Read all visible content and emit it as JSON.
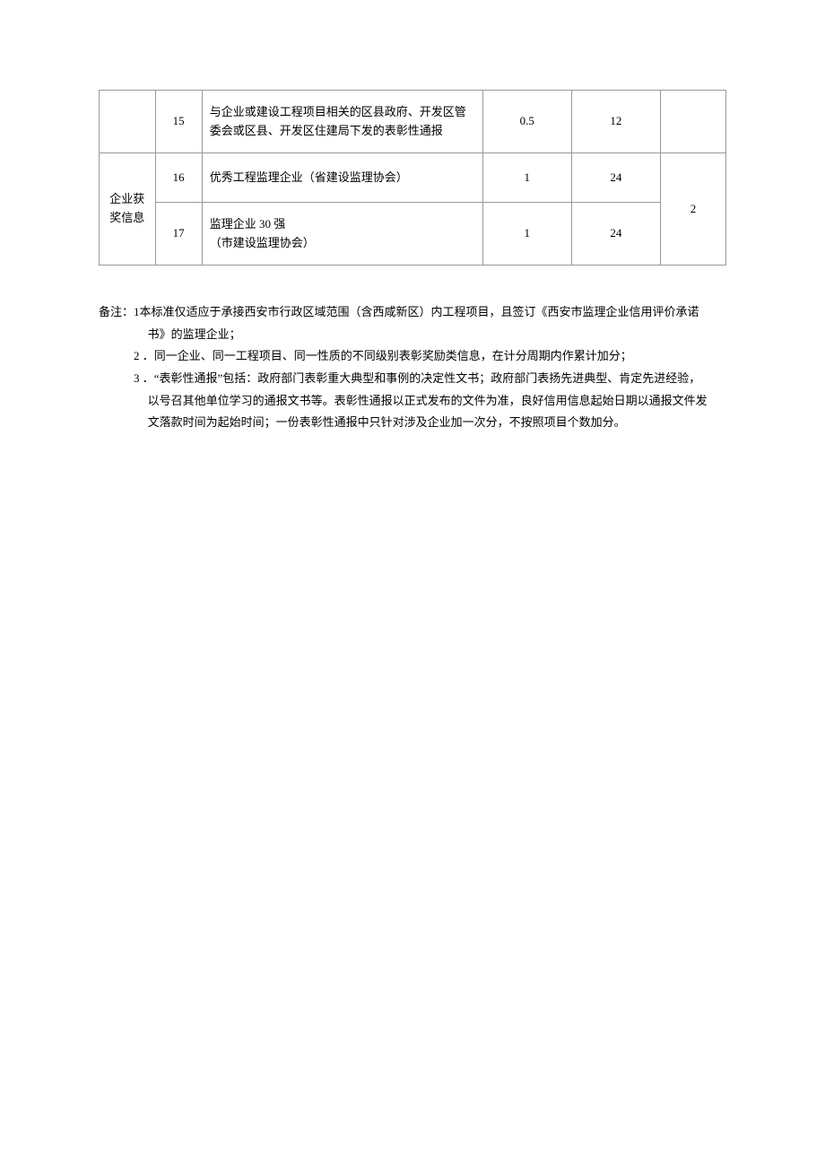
{
  "table": {
    "rows": [
      {
        "num": "15",
        "desc": "与企业或建设工程项目相关的区县政府、开发区管委会或区县、开发区住建局下发的表彰性通报",
        "val1": "0.5",
        "val2": "12"
      },
      {
        "category": "企业获奖信息",
        "num": "16",
        "desc": "优秀工程监理企业（省建设监理协会）",
        "val1": "1",
        "val2": "24",
        "val3": "2"
      },
      {
        "num": "17",
        "desc": "监理企业 30 强\n（市建设监理协会）",
        "val1": "1",
        "val2": "24"
      }
    ]
  },
  "notes": {
    "prefix": "备注：",
    "items": [
      {
        "num": "1",
        "text_line1": "本标准仅适应于承接西安市行政区域范围（含西咸新区）内工程项目，且签订《西安市监理企业信用评价承诺",
        "text_line2": "书》的监理企业；"
      },
      {
        "num": "2",
        "text_line1": "．同一企业、同一工程项目、同一性质的不同级别表彰奖励类信息，在计分周期内作累计加分；"
      },
      {
        "num": "3",
        "text_line1": "．“表彰性通报”包括：政府部门表彰重大典型和事例的决定性文书；政府部门表扬先进典型、肯定先进经验，",
        "text_line2": "以号召其他单位学习的通报文书等。表彰性通报以正式发布的文件为准，良好信用信息起始日期以通报文件发",
        "text_line3": "文落款时间为起始时间；一份表彰性通报中只针对涉及企业加一次分，不按照项目个数加分。"
      }
    ]
  }
}
